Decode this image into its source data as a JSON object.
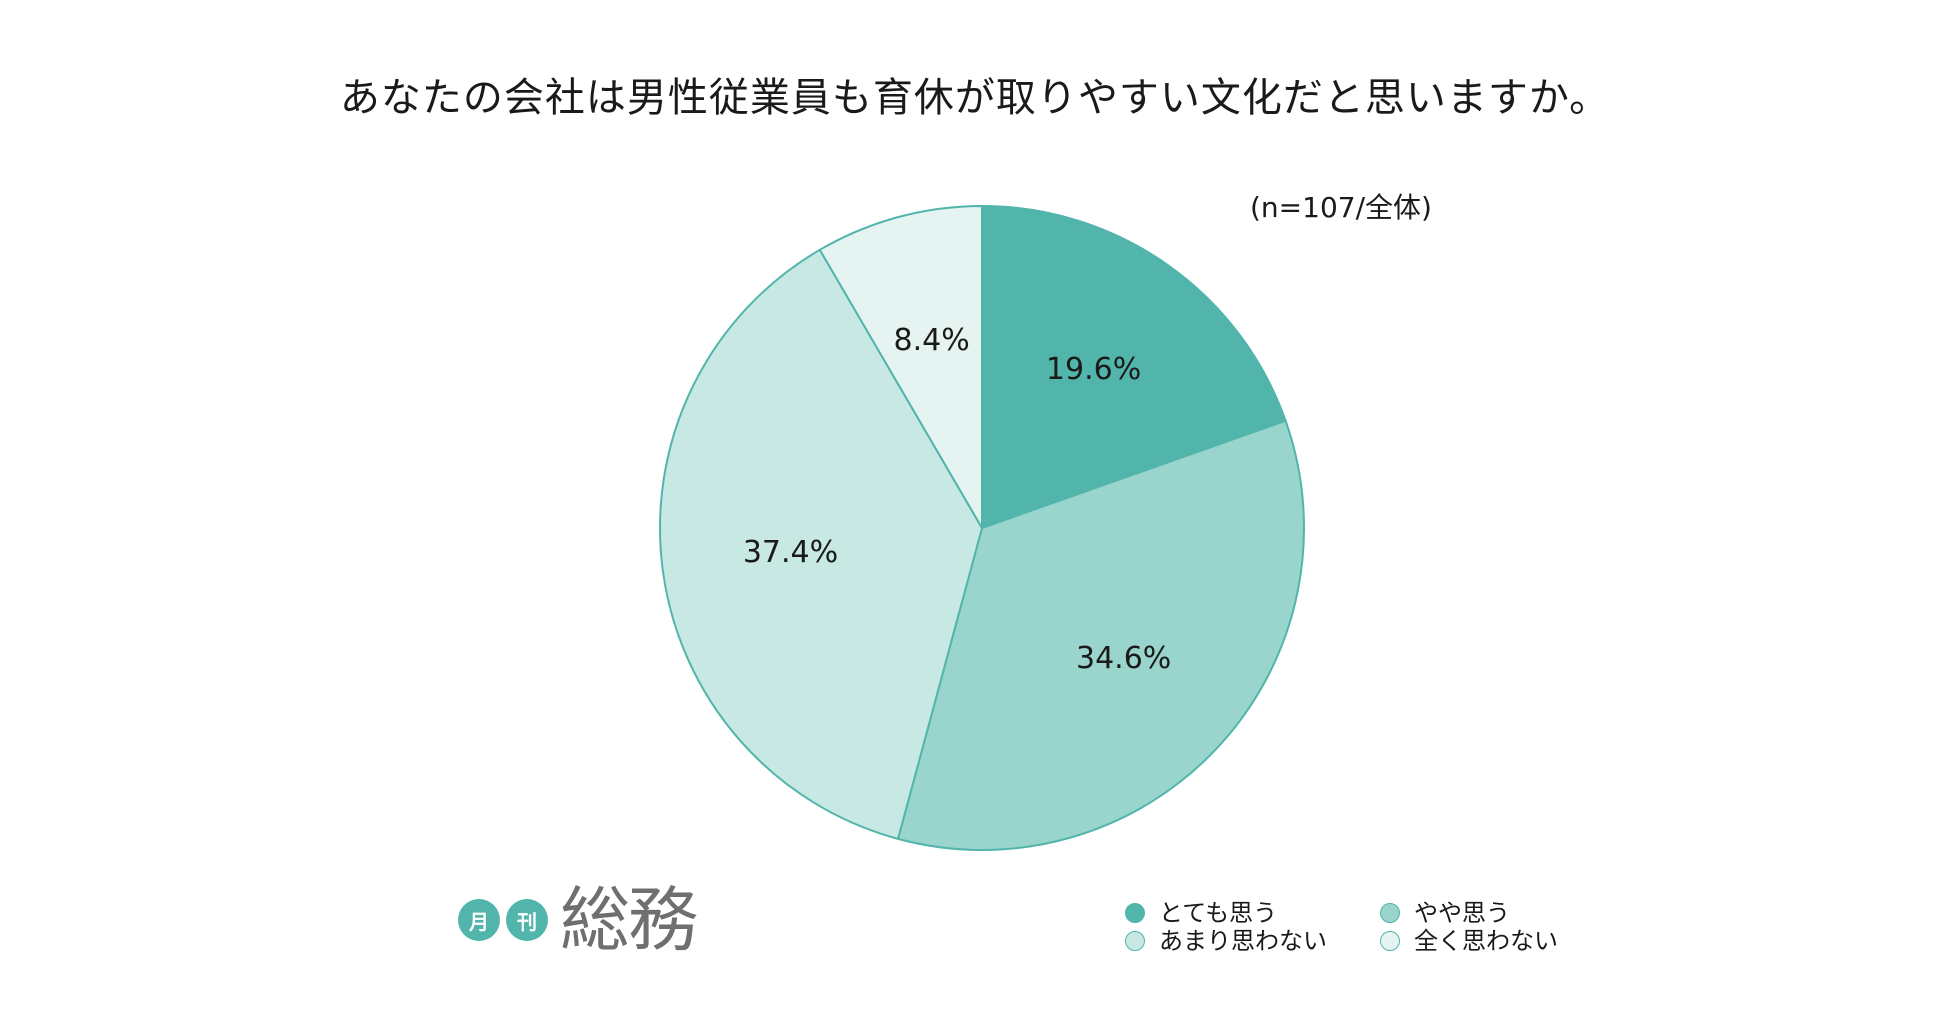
{
  "chart_data": {
    "type": "pie",
    "title": "あなたの会社は男性従業員も育休が取りやすい文化だと思いますか。",
    "note": "(n=107/全体)",
    "categories": [
      "とても思う",
      "やや思う",
      "あまり思わない",
      "全く思わない"
    ],
    "values": [
      19.6,
      34.6,
      37.4,
      8.4
    ],
    "labels": [
      "19.6%",
      "34.6%",
      "37.4%",
      "8.4%"
    ],
    "colors": [
      "#52b5ab",
      "#99d5cc",
      "#c7e8e3",
      "#e5f3f1"
    ],
    "stroke_color": "#52b5ab",
    "start": "12 o'clock",
    "direction": "clockwise",
    "legend": "bottom-right"
  },
  "logo": {
    "badge_1": "月",
    "badge_2": "刊",
    "word": "総務",
    "color": "#52b5ab"
  }
}
